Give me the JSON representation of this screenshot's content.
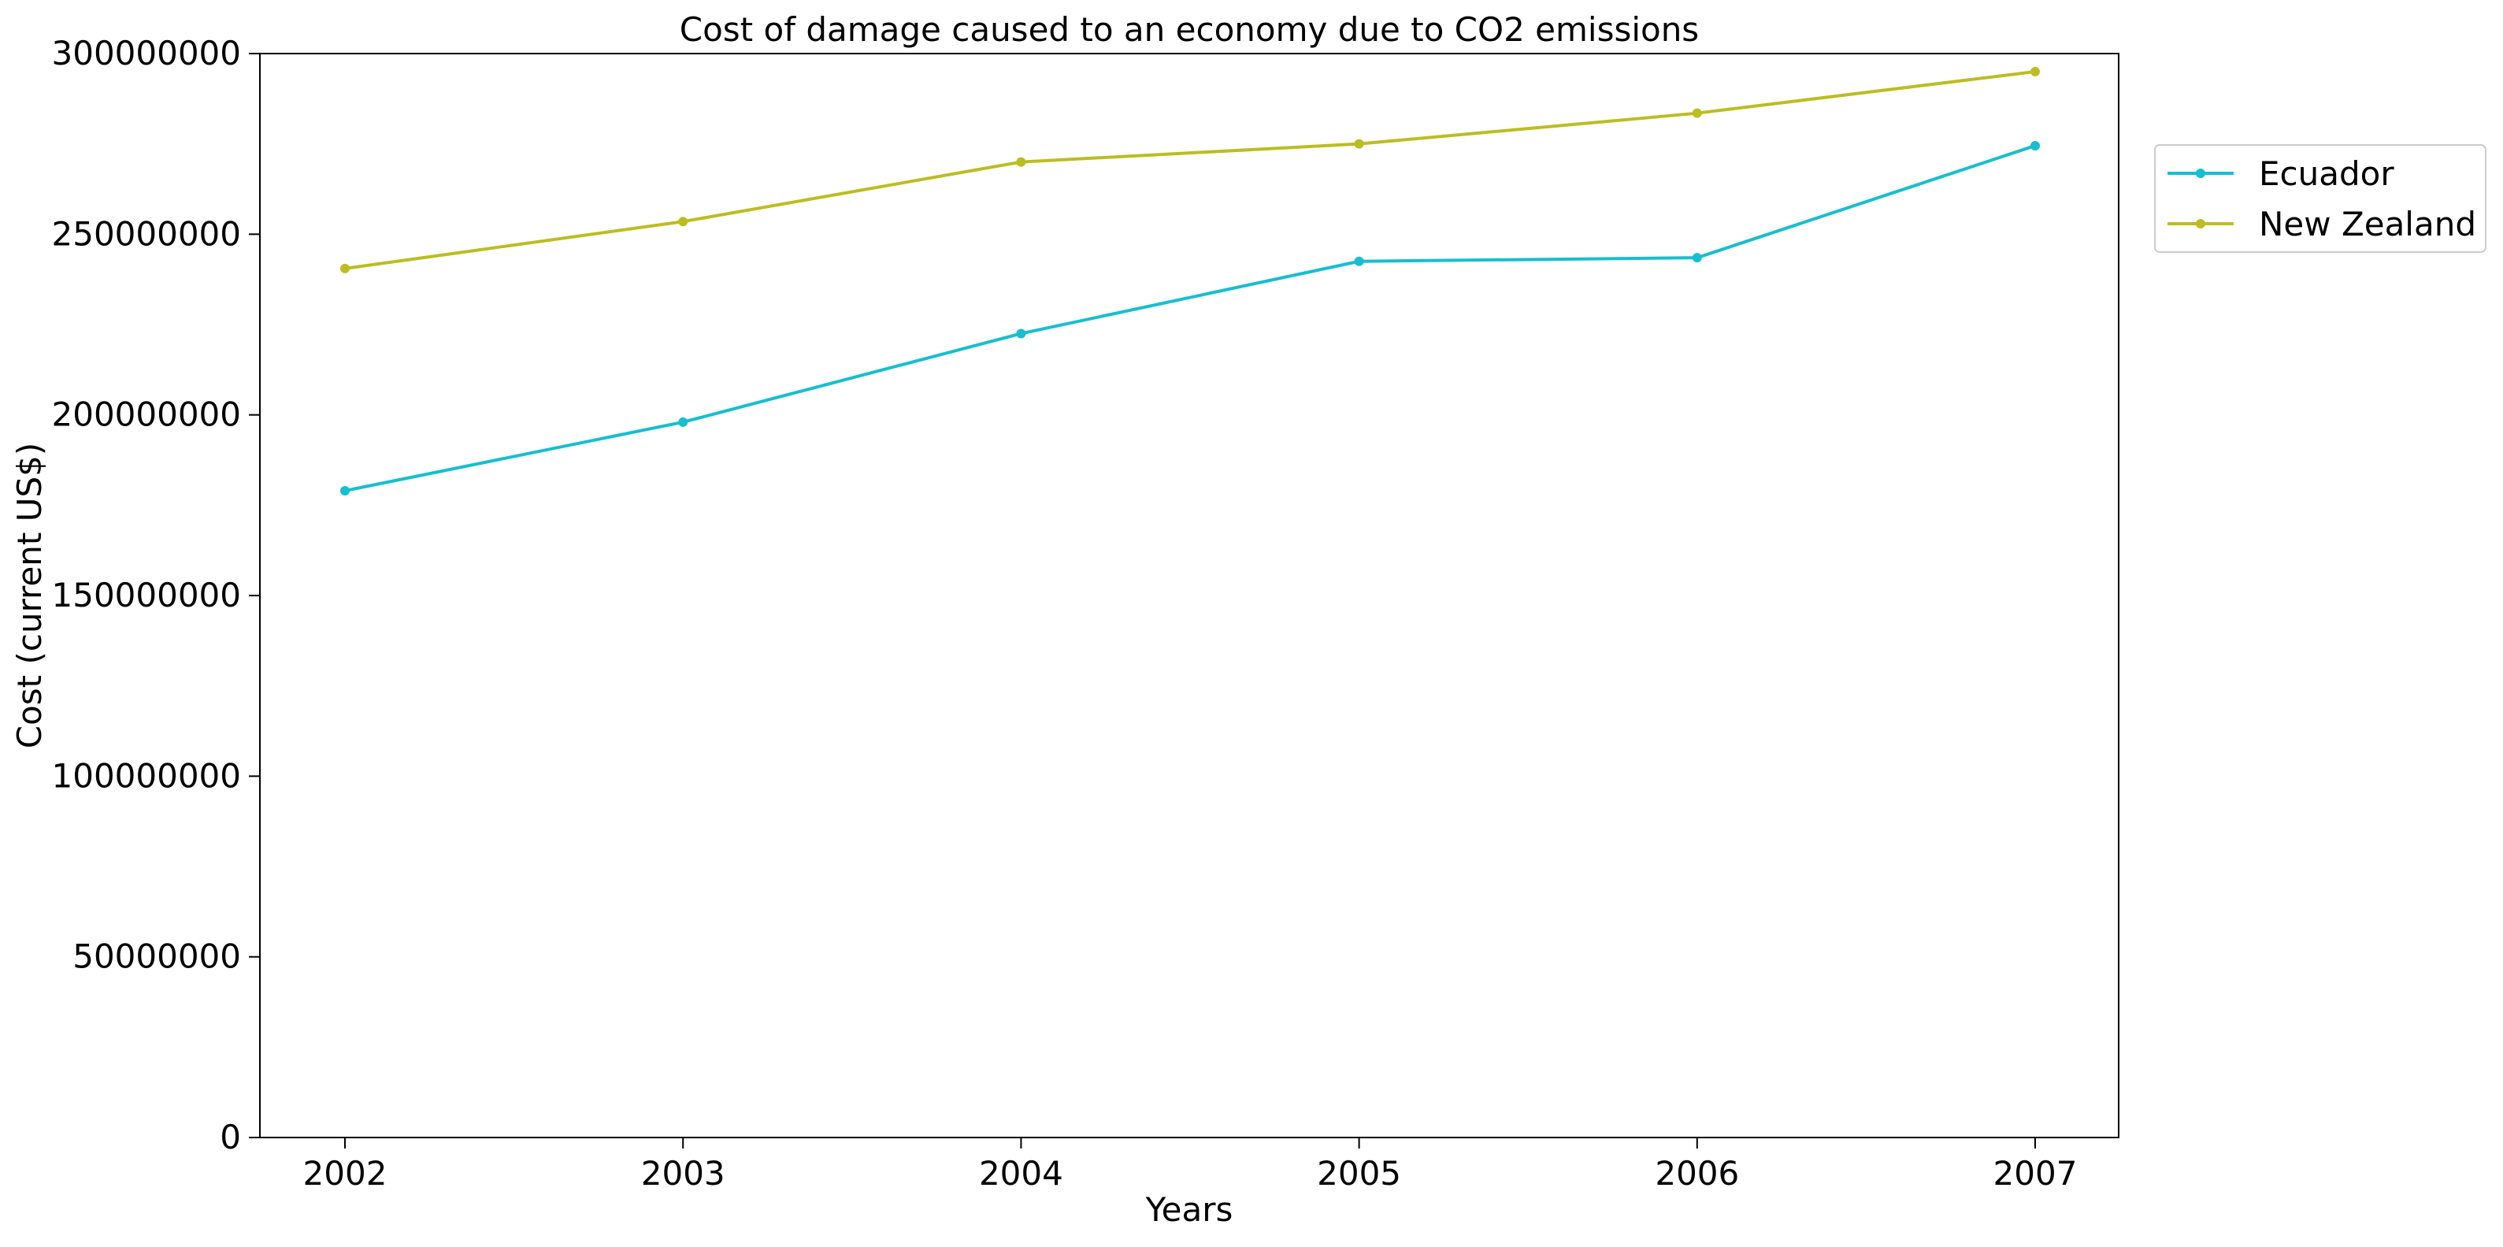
{
  "chart_data": {
    "type": "line",
    "title": "Cost of damage caused to an economy due to CO2 emissions",
    "xlabel": "Years",
    "ylabel": "Cost (current US$)",
    "x": [
      "2002",
      "2003",
      "2004",
      "2005",
      "2006",
      "2007"
    ],
    "ylim": [
      0,
      300000000
    ],
    "yticks": [
      "0",
      "50000000",
      "100000000",
      "150000000",
      "200000000",
      "250000000",
      "300000000"
    ],
    "grid": false,
    "legend_position": "outside-top-right",
    "series": [
      {
        "name": "Ecuador",
        "color": "#17becf",
        "values": [
          179000000,
          198000000,
          222500000,
          242500000,
          243500000,
          274500000
        ]
      },
      {
        "name": "New Zealand",
        "color": "#bcbd22",
        "values": [
          240500000,
          253500000,
          270000000,
          275000000,
          283500000,
          295000000
        ]
      }
    ]
  }
}
